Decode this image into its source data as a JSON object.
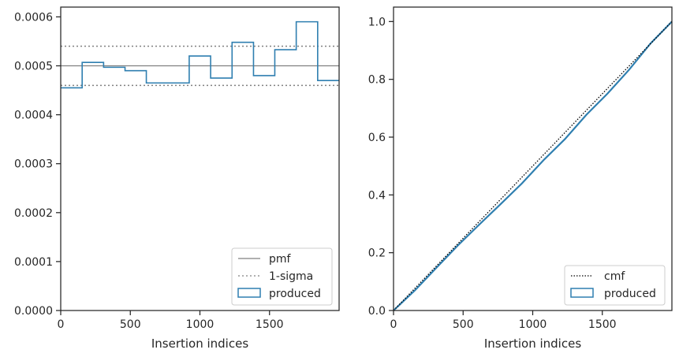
{
  "chart_data": [
    {
      "type": "histogram",
      "xlabel": "Insertion indices",
      "ylabel": "",
      "xlim": [
        0,
        2000
      ],
      "ylim": [
        0,
        0.00062
      ],
      "xticks": [
        0,
        500,
        1000,
        1500
      ],
      "xtick_labels": [
        "0",
        "500",
        "1000",
        "1500"
      ],
      "yticks": [
        0,
        0.0001,
        0.0002,
        0.0003,
        0.0004,
        0.0005,
        0.0006
      ],
      "ytick_labels": [
        "0.0000",
        "0.0001",
        "0.0002",
        "0.0003",
        "0.0004",
        "0.0005",
        "0.0006"
      ],
      "bin_edges": [
        0,
        154,
        308,
        462,
        615,
        769,
        923,
        1077,
        1231,
        1385,
        1538,
        1692,
        1846,
        2000
      ],
      "values": [
        0.000455,
        0.000507,
        0.000497,
        0.00049,
        0.000465,
        0.000465,
        0.00052,
        0.000475,
        0.000548,
        0.00048,
        0.000533,
        0.00059,
        0.00047
      ],
      "pmf": 0.0005,
      "sigma_band": [
        0.00046,
        0.00054
      ],
      "legend": {
        "location": "lower right",
        "entries": [
          "pmf",
          "1-sigma",
          "produced"
        ]
      },
      "colors": {
        "produced": "#2f7fb0",
        "pmf": "#808080",
        "sigma": "#808080"
      }
    },
    {
      "type": "line",
      "xlabel": "Insertion indices",
      "ylabel": "",
      "xlim": [
        0,
        2000
      ],
      "ylim": [
        0,
        1.05
      ],
      "xticks": [
        0,
        500,
        1000,
        1500
      ],
      "xtick_labels": [
        "0",
        "500",
        "1000",
        "1500"
      ],
      "yticks": [
        0,
        0.2,
        0.4,
        0.6,
        0.8,
        1.0
      ],
      "ytick_labels": [
        "0.0",
        "0.2",
        "0.4",
        "0.6",
        "0.8",
        "1.0"
      ],
      "series": [
        {
          "name": "cmf",
          "x": [
            0,
            2000
          ],
          "y": [
            0,
            1.0
          ]
        },
        {
          "name": "produced",
          "x": [
            0,
            154,
            308,
            462,
            615,
            769,
            923,
            1077,
            1231,
            1385,
            1538,
            1692,
            1846,
            2000
          ],
          "y": [
            0,
            0.07,
            0.148,
            0.225,
            0.297,
            0.368,
            0.44,
            0.52,
            0.593,
            0.677,
            0.751,
            0.833,
            0.924,
            1.0
          ]
        }
      ],
      "legend": {
        "location": "lower right",
        "entries": [
          "cmf",
          "produced"
        ]
      },
      "colors": {
        "produced": "#2f7fb0",
        "cmf": "#000000"
      }
    }
  ]
}
